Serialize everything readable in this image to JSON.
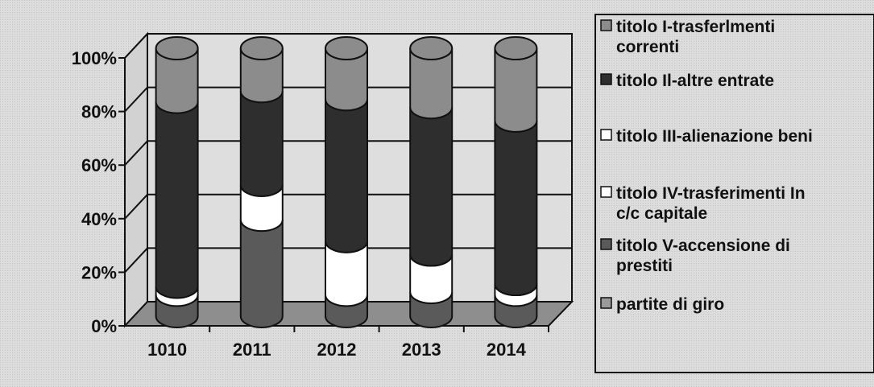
{
  "chart_data": {
    "type": "bar",
    "stacked": "percent",
    "categories": [
      "1010",
      "2011",
      "2012",
      "2013",
      "2014"
    ],
    "y_ticks": [
      "0%",
      "20%",
      "40%",
      "60%",
      "80%",
      "100%"
    ],
    "ylim": [
      0,
      100
    ],
    "grid": true,
    "legend_position": "right",
    "series": [
      {
        "name": "titolo I-trasferlmenti correnti",
        "values": [
          20,
          16,
          19,
          22,
          27
        ],
        "color": "#8c8c8c"
      },
      {
        "name": "titolo Il-altre entrate",
        "values": [
          69,
          35,
          53,
          55,
          61
        ],
        "color": "#2e2e2e"
      },
      {
        "name": "titolo III-alienazione beni",
        "values": [
          0,
          0,
          0,
          0,
          0
        ],
        "color": "#ffffff"
      },
      {
        "name": "titolo IV-trasferimenti In c/c capitale",
        "values": [
          3,
          13,
          20,
          14,
          4
        ],
        "color": "#ffffff"
      },
      {
        "name": "titolo V-accensione di prestiti",
        "values": [
          8,
          36,
          8,
          9,
          8
        ],
        "color": "#5a5a5a"
      },
      {
        "name": "partite di giro",
        "values": [
          0,
          0,
          0,
          0,
          0
        ],
        "color": "#9a9a9a"
      }
    ],
    "legend": [
      {
        "lines": [
          "titolo I-trasferlmenti",
          "correnti"
        ],
        "color": "#8c8c8c"
      },
      {
        "lines": [
          "titolo Il-altre entrate"
        ],
        "color": "#2e2e2e"
      },
      {
        "lines": [
          "titolo III-alienazione beni"
        ],
        "color": "#ffffff"
      },
      {
        "lines": [
          "titolo IV-trasferimenti In",
          "c/c capitale"
        ],
        "color": "#ffffff"
      },
      {
        "lines": [
          "titolo V-accensione di",
          "prestiti"
        ],
        "color": "#5a5a5a"
      },
      {
        "lines": [
          "partite di giro"
        ],
        "color": "#9a9a9a"
      }
    ]
  }
}
